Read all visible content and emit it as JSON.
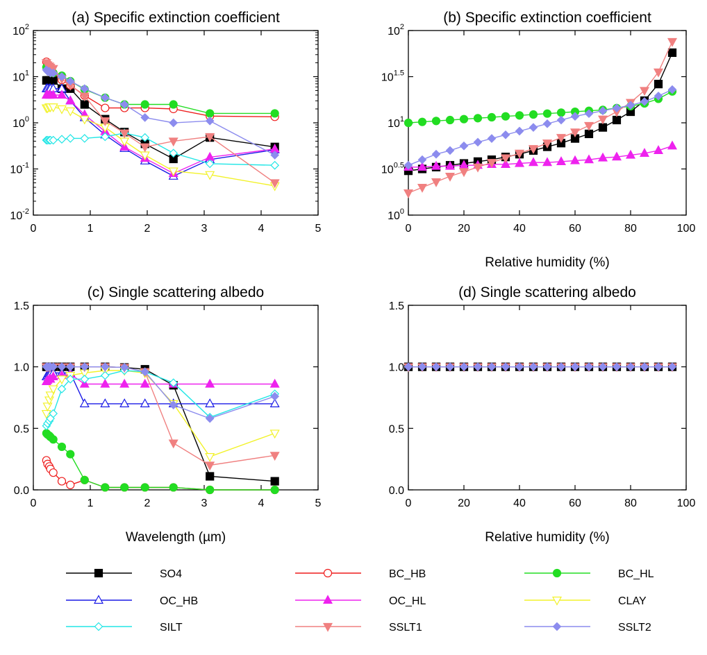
{
  "colors": {
    "SO4": "#000000",
    "BC_HB": "#ee1c1c",
    "BC_HL": "#22dd22",
    "OC_HB": "#1a1ae6",
    "OC_HL": "#ee22ee",
    "CLAY": "#f2f22a",
    "SILT": "#22e6e6",
    "SSLT1": "#f08080",
    "SSLT2": "#8c8cee"
  },
  "markers": {
    "SO4": "square-filled",
    "BC_HB": "circle-open",
    "BC_HL": "circle-filled",
    "OC_HB": "triangle-up-open",
    "OC_HL": "triangle-up-filled",
    "CLAY": "triangle-down-open",
    "SILT": "diamond-open",
    "SSLT1": "triangle-down-filled",
    "SSLT2": "diamond-filled"
  },
  "legend": {
    "placement": "bottom",
    "entries": [
      "SO4",
      "BC_HB",
      "BC_HL",
      "OC_HB",
      "OC_HL",
      "CLAY",
      "SILT",
      "SSLT1",
      "SSLT2"
    ]
  },
  "chart_data": [
    {
      "id": "a",
      "type": "line",
      "title": "(a) Specific extinction coefficient",
      "xlabel": "",
      "ylabel": "",
      "xlim": [
        0,
        5
      ],
      "ylim": [
        0.01,
        100
      ],
      "yscale": "log",
      "xticks": [
        "0",
        "1",
        "2",
        "3",
        "4",
        "5"
      ],
      "yticks": [
        {
          "base": "10",
          "exp": "-2"
        },
        {
          "base": "10",
          "exp": "-1"
        },
        {
          "base": "10",
          "exp": "0"
        },
        {
          "base": "10",
          "exp": "1"
        },
        {
          "base": "10",
          "exp": "2"
        }
      ],
      "x": [
        0.23,
        0.25,
        0.28,
        0.3,
        0.35,
        0.5,
        0.65,
        0.9,
        1.26,
        1.6,
        1.96,
        2.46,
        3.1,
        4.24
      ],
      "series": [
        {
          "name": "SO4",
          "values": [
            8.3,
            8.3,
            8.3,
            8.3,
            8.3,
            5.5,
            5.5,
            2.5,
            1.2,
            0.63,
            0.35,
            0.165,
            0.48,
            0.3
          ]
        },
        {
          "name": "BC_HB",
          "values": [
            21,
            18,
            16,
            14,
            12,
            8.5,
            6.5,
            3.9,
            2.1,
            2.1,
            2.1,
            2.0,
            1.4,
            1.35
          ]
        },
        {
          "name": "BC_HL",
          "values": [
            16,
            15,
            14,
            13,
            12,
            10.5,
            8.0,
            5.3,
            3.5,
            2.5,
            2.5,
            2.5,
            1.6,
            1.6
          ]
        },
        {
          "name": "OC_HB",
          "values": [
            5.5,
            5.5,
            5.5,
            5.5,
            5.5,
            5.5,
            3.0,
            1.3,
            0.55,
            0.28,
            0.15,
            0.07,
            0.16,
            0.26
          ]
        },
        {
          "name": "OC_HL",
          "values": [
            4.0,
            4.0,
            4.0,
            4.0,
            4.0,
            4.0,
            3.0,
            1.5,
            0.65,
            0.3,
            0.17,
            0.08,
            0.18,
            0.27
          ]
        },
        {
          "name": "CLAY",
          "values": [
            2.1,
            2.1,
            2.2,
            2.2,
            2.2,
            2.0,
            1.8,
            1.2,
            0.8,
            0.4,
            0.2,
            0.09,
            0.075,
            0.043
          ]
        },
        {
          "name": "SILT",
          "values": [
            0.42,
            0.42,
            0.42,
            0.42,
            0.42,
            0.44,
            0.46,
            0.46,
            0.5,
            0.6,
            0.48,
            0.22,
            0.13,
            0.12
          ]
        },
        {
          "name": "SSLT1",
          "values": [
            20,
            18,
            17,
            16,
            15,
            9.0,
            6.5,
            3.8,
            1.1,
            0.6,
            0.3,
            0.4,
            0.5,
            0.05
          ]
        },
        {
          "name": "SSLT2",
          "values": [
            14,
            13,
            13,
            12,
            12,
            10,
            8.0,
            5.5,
            3.5,
            2.5,
            1.3,
            1.0,
            1.1,
            0.2
          ]
        }
      ]
    },
    {
      "id": "b",
      "type": "line",
      "title": "(b) Specific extinction coefficient",
      "xlabel": "Relative humidity (%)",
      "ylabel": "",
      "xlim": [
        0,
        100
      ],
      "ylim": [
        0,
        2
      ],
      "yscale": "log",
      "xticks": [
        "0",
        "20",
        "40",
        "60",
        "80",
        "100"
      ],
      "yticks": [
        {
          "base": "10",
          "exp": "0"
        },
        {
          "base": "10",
          "exp": "0.5"
        },
        {
          "base": "10",
          "exp": "1"
        },
        {
          "base": "10",
          "exp": "1.5"
        },
        {
          "base": "10",
          "exp": "2"
        }
      ],
      "x": [
        0,
        5,
        10,
        15,
        20,
        25,
        30,
        35,
        40,
        45,
        50,
        55,
        60,
        65,
        70,
        75,
        80,
        85,
        90,
        95
      ],
      "series": [
        {
          "name": "SO4",
          "values": [
            0.48,
            0.5,
            0.52,
            0.54,
            0.56,
            0.58,
            0.6,
            0.63,
            0.66,
            0.7,
            0.74,
            0.78,
            0.83,
            0.88,
            0.95,
            1.03,
            1.12,
            1.24,
            1.42,
            1.76
          ]
        },
        {
          "name": "BC_HL",
          "values": [
            1.0,
            1.01,
            1.02,
            1.03,
            1.04,
            1.05,
            1.06,
            1.07,
            1.08,
            1.09,
            1.1,
            1.11,
            1.12,
            1.13,
            1.14,
            1.16,
            1.18,
            1.21,
            1.26,
            1.34
          ]
        },
        {
          "name": "OC_HL",
          "values": [
            0.52,
            0.52,
            0.53,
            0.53,
            0.54,
            0.54,
            0.55,
            0.55,
            0.56,
            0.57,
            0.57,
            0.58,
            0.59,
            0.6,
            0.62,
            0.63,
            0.65,
            0.67,
            0.7,
            0.75
          ]
        },
        {
          "name": "SSLT1",
          "values": [
            0.24,
            0.3,
            0.36,
            0.42,
            0.47,
            0.52,
            0.57,
            0.62,
            0.67,
            0.72,
            0.78,
            0.84,
            0.9,
            0.97,
            1.04,
            1.12,
            1.22,
            1.35,
            1.55,
            1.88
          ]
        },
        {
          "name": "SSLT2",
          "values": [
            0.54,
            0.6,
            0.66,
            0.7,
            0.75,
            0.79,
            0.83,
            0.87,
            0.91,
            0.95,
            0.99,
            1.03,
            1.07,
            1.1,
            1.13,
            1.16,
            1.19,
            1.23,
            1.29,
            1.36
          ]
        }
      ]
    },
    {
      "id": "c",
      "type": "line",
      "title": "(c) Single scattering albedo",
      "xlabel": "Wavelength (µm)",
      "ylabel": "",
      "xlim": [
        0,
        5
      ],
      "ylim": [
        0,
        1.5
      ],
      "yscale": "linear",
      "xticks": [
        "0",
        "1",
        "2",
        "3",
        "4",
        "5"
      ],
      "yticks": [
        "0.0",
        "0.5",
        "1.0",
        "1.5"
      ],
      "x": [
        0.23,
        0.25,
        0.28,
        0.3,
        0.35,
        0.5,
        0.65,
        0.9,
        1.26,
        1.6,
        1.96,
        2.46,
        3.1,
        4.24
      ],
      "series": [
        {
          "name": "SO4",
          "values": [
            1.0,
            1.0,
            1.0,
            1.0,
            1.0,
            1.0,
            1.0,
            1.0,
            1.0,
            0.995,
            0.98,
            0.85,
            0.11,
            0.07
          ]
        },
        {
          "name": "BC_HB",
          "values": [
            0.24,
            0.21,
            0.19,
            0.17,
            0.14,
            0.07,
            0.04,
            0.08,
            0.02,
            0.02,
            0.02,
            0.02,
            0.0,
            0.0
          ]
        },
        {
          "name": "BC_HL",
          "values": [
            0.46,
            0.45,
            0.44,
            0.43,
            0.41,
            0.35,
            0.29,
            0.08,
            0.02,
            0.02,
            0.02,
            0.02,
            0.0,
            0.0
          ]
        },
        {
          "name": "OC_HB",
          "values": [
            0.92,
            0.93,
            0.94,
            0.94,
            0.95,
            0.95,
            0.95,
            0.7,
            0.7,
            0.7,
            0.7,
            0.7,
            0.7,
            0.7
          ]
        },
        {
          "name": "OC_HL",
          "values": [
            0.88,
            0.89,
            0.9,
            0.9,
            0.92,
            0.93,
            0.94,
            0.86,
            0.86,
            0.86,
            0.86,
            0.86,
            0.86,
            0.86
          ]
        },
        {
          "name": "CLAY",
          "values": [
            0.62,
            0.68,
            0.73,
            0.77,
            0.82,
            0.9,
            0.93,
            0.95,
            0.97,
            0.97,
            0.95,
            0.7,
            0.27,
            0.46
          ]
        },
        {
          "name": "SILT",
          "values": [
            0.52,
            0.54,
            0.56,
            0.58,
            0.62,
            0.82,
            0.9,
            0.9,
            0.93,
            0.97,
            0.96,
            0.87,
            0.59,
            0.78
          ]
        },
        {
          "name": "SSLT1",
          "values": [
            1.0,
            1.0,
            1.0,
            1.0,
            1.0,
            1.0,
            1.0,
            1.0,
            1.0,
            0.995,
            0.96,
            0.38,
            0.2,
            0.28
          ]
        },
        {
          "name": "SSLT2",
          "values": [
            1.0,
            1.0,
            1.0,
            1.0,
            1.0,
            1.0,
            1.0,
            1.0,
            1.0,
            0.995,
            0.96,
            0.69,
            0.58,
            0.76
          ]
        }
      ]
    },
    {
      "id": "d",
      "type": "line",
      "title": "(d) Single scattering albedo",
      "xlabel": "Relative humidity (%)",
      "ylabel": "",
      "xlim": [
        0,
        100
      ],
      "ylim": [
        0,
        1.5
      ],
      "yscale": "linear",
      "xticks": [
        "0",
        "20",
        "40",
        "60",
        "80",
        "100"
      ],
      "yticks": [
        "0.0",
        "0.5",
        "1.0",
        "1.5"
      ],
      "x": [
        0,
        5,
        10,
        15,
        20,
        25,
        30,
        35,
        40,
        45,
        50,
        55,
        60,
        65,
        70,
        75,
        80,
        85,
        90,
        95
      ],
      "series": [
        {
          "name": "SO4",
          "values": [
            1.0,
            1.0,
            1.0,
            1.0,
            1.0,
            1.0,
            1.0,
            1.0,
            1.0,
            1.0,
            1.0,
            1.0,
            1.0,
            1.0,
            1.0,
            1.0,
            1.0,
            1.0,
            1.0,
            1.0
          ]
        },
        {
          "name": "SSLT1",
          "values": [
            1.0,
            1.0,
            1.0,
            1.0,
            1.0,
            1.0,
            1.0,
            1.0,
            1.0,
            1.0,
            1.0,
            1.0,
            1.0,
            1.0,
            1.0,
            1.0,
            1.0,
            1.0,
            1.0,
            1.0
          ]
        },
        {
          "name": "SSLT2",
          "values": [
            1.0,
            1.0,
            1.0,
            1.0,
            1.0,
            1.0,
            1.0,
            1.0,
            1.0,
            1.0,
            1.0,
            1.0,
            1.0,
            1.0,
            1.0,
            1.0,
            1.0,
            1.0,
            1.0,
            1.0
          ]
        }
      ]
    }
  ]
}
